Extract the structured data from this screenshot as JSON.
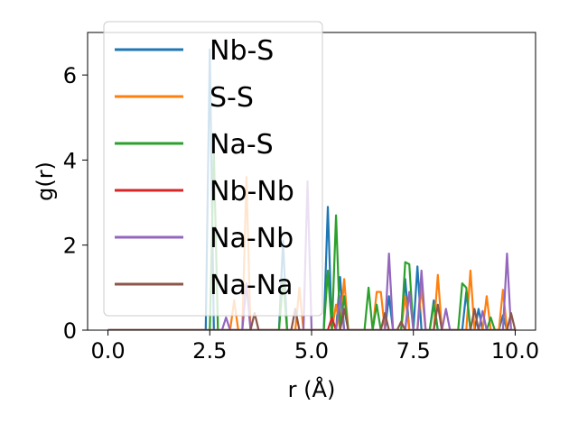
{
  "chart_data": {
    "type": "line",
    "xlabel": "r (Å)",
    "ylabel": "g(r)",
    "xlim": [
      -0.5,
      10.5
    ],
    "ylim": [
      0,
      7
    ],
    "xticks": [
      "0.0",
      "2.5",
      "5.0",
      "7.5",
      "10.0"
    ],
    "yticks": [
      "0",
      "2",
      "4",
      "6"
    ],
    "grid": false,
    "legend_position": "upper-left",
    "series": [
      {
        "name": "Nb-S",
        "color": "#1f77b4",
        "points": [
          [
            0,
            0
          ],
          [
            2.3,
            0
          ],
          [
            2.4,
            0
          ],
          [
            2.5,
            6.6
          ],
          [
            2.6,
            0
          ],
          [
            4.1,
            0
          ],
          [
            4.2,
            0
          ],
          [
            4.3,
            2.1
          ],
          [
            4.4,
            0
          ],
          [
            5.3,
            0
          ],
          [
            5.4,
            2.9
          ],
          [
            5.5,
            0
          ],
          [
            5.6,
            0
          ],
          [
            5.7,
            1.25
          ],
          [
            5.8,
            0
          ],
          [
            6.8,
            0
          ],
          [
            6.9,
            0.8
          ],
          [
            7.0,
            0
          ],
          [
            7.2,
            0
          ],
          [
            7.3,
            1.2
          ],
          [
            7.4,
            0
          ],
          [
            7.5,
            0
          ],
          [
            7.6,
            1.5
          ],
          [
            7.7,
            0
          ],
          [
            7.9,
            0
          ],
          [
            8.0,
            0.7
          ],
          [
            8.1,
            0
          ],
          [
            8.7,
            0
          ],
          [
            8.8,
            0.9
          ],
          [
            8.9,
            0
          ],
          [
            9.0,
            0
          ],
          [
            9.1,
            0.5
          ],
          [
            9.2,
            0
          ],
          [
            9.6,
            0
          ],
          [
            9.7,
            0.35
          ],
          [
            9.8,
            0
          ],
          [
            10.0,
            0
          ]
        ]
      },
      {
        "name": "S-S",
        "color": "#ff7f0e",
        "points": [
          [
            0,
            0
          ],
          [
            3.0,
            0
          ],
          [
            3.1,
            0.7
          ],
          [
            3.2,
            0
          ],
          [
            3.3,
            0
          ],
          [
            3.4,
            3.6
          ],
          [
            3.5,
            0
          ],
          [
            4.6,
            0
          ],
          [
            4.7,
            1.0
          ],
          [
            4.8,
            0
          ],
          [
            5.5,
            0
          ],
          [
            5.6,
            0.6
          ],
          [
            5.7,
            0
          ],
          [
            5.8,
            1.2
          ],
          [
            5.9,
            0
          ],
          [
            6.5,
            0
          ],
          [
            6.6,
            0.9
          ],
          [
            6.7,
            0.9
          ],
          [
            6.8,
            0
          ],
          [
            7.2,
            0
          ],
          [
            7.3,
            0.8
          ],
          [
            7.4,
            0
          ],
          [
            7.6,
            0
          ],
          [
            7.7,
            1.0
          ],
          [
            7.8,
            0
          ],
          [
            8.0,
            0
          ],
          [
            8.1,
            1.3
          ],
          [
            8.2,
            0
          ],
          [
            8.8,
            0
          ],
          [
            8.9,
            1.4
          ],
          [
            9.0,
            0
          ],
          [
            9.2,
            0
          ],
          [
            9.3,
            0.8
          ],
          [
            9.4,
            0
          ],
          [
            9.6,
            0
          ],
          [
            9.7,
            0.95
          ],
          [
            9.8,
            0
          ],
          [
            10.0,
            0
          ]
        ]
      },
      {
        "name": "Na-S",
        "color": "#2ca02c",
        "points": [
          [
            0,
            0
          ],
          [
            2.5,
            0
          ],
          [
            2.6,
            4.2
          ],
          [
            2.7,
            0
          ],
          [
            2.8,
            0
          ],
          [
            4.2,
            0
          ],
          [
            4.3,
            1.2
          ],
          [
            4.4,
            0
          ],
          [
            5.3,
            0
          ],
          [
            5.4,
            1.4
          ],
          [
            5.5,
            0
          ],
          [
            5.6,
            2.7
          ],
          [
            5.7,
            0
          ],
          [
            5.8,
            0.8
          ],
          [
            5.9,
            0
          ],
          [
            6.3,
            0
          ],
          [
            6.4,
            1.0
          ],
          [
            6.5,
            0
          ],
          [
            6.6,
            0.6
          ],
          [
            6.7,
            0
          ],
          [
            7.2,
            0
          ],
          [
            7.3,
            1.6
          ],
          [
            7.4,
            1.55
          ],
          [
            7.5,
            0
          ],
          [
            7.9,
            0
          ],
          [
            8.0,
            0.6
          ],
          [
            8.1,
            0
          ],
          [
            8.6,
            0
          ],
          [
            8.7,
            1.1
          ],
          [
            8.8,
            1.0
          ],
          [
            8.9,
            0
          ],
          [
            9.3,
            0
          ],
          [
            9.4,
            0.3
          ],
          [
            9.5,
            0
          ],
          [
            10.0,
            0
          ]
        ]
      },
      {
        "name": "Nb-Nb",
        "color": "#d62728",
        "points": [
          [
            0,
            0
          ],
          [
            5.4,
            0
          ],
          [
            5.5,
            0.3
          ],
          [
            5.6,
            0
          ],
          [
            10.0,
            0
          ]
        ]
      },
      {
        "name": "Na-Nb",
        "color": "#9467bd",
        "points": [
          [
            0,
            0
          ],
          [
            2.8,
            0
          ],
          [
            2.9,
            0.3
          ],
          [
            3.0,
            0
          ],
          [
            3.3,
            0
          ],
          [
            3.4,
            1.1
          ],
          [
            3.5,
            0
          ],
          [
            4.8,
            0
          ],
          [
            4.9,
            3.5
          ],
          [
            5.0,
            0
          ],
          [
            5.6,
            0
          ],
          [
            5.7,
            0.8
          ],
          [
            5.8,
            0
          ],
          [
            6.8,
            0
          ],
          [
            6.9,
            1.8
          ],
          [
            7.0,
            0
          ],
          [
            7.3,
            0
          ],
          [
            7.4,
            0.9
          ],
          [
            7.5,
            0
          ],
          [
            7.6,
            0
          ],
          [
            7.7,
            1.4
          ],
          [
            7.8,
            0
          ],
          [
            8.2,
            0
          ],
          [
            8.3,
            0.5
          ],
          [
            8.4,
            0
          ],
          [
            9.1,
            0
          ],
          [
            9.2,
            0.45
          ],
          [
            9.3,
            0
          ],
          [
            9.7,
            0
          ],
          [
            9.8,
            1.8
          ],
          [
            9.9,
            0
          ],
          [
            10.0,
            0
          ]
        ]
      },
      {
        "name": "Na-Na",
        "color": "#8c564b",
        "points": [
          [
            0,
            0
          ],
          [
            3.5,
            0
          ],
          [
            3.6,
            0.4
          ],
          [
            3.7,
            0
          ],
          [
            4.5,
            0
          ],
          [
            4.6,
            0.5
          ],
          [
            4.7,
            0
          ],
          [
            5.7,
            0
          ],
          [
            5.8,
            0.5
          ],
          [
            5.9,
            0
          ],
          [
            6.7,
            0
          ],
          [
            6.8,
            0.4
          ],
          [
            6.9,
            0
          ],
          [
            7.1,
            0
          ],
          [
            7.2,
            0.2
          ],
          [
            7.3,
            0
          ],
          [
            8.0,
            0
          ],
          [
            8.1,
            0.6
          ],
          [
            8.2,
            0
          ],
          [
            8.9,
            0
          ],
          [
            9.0,
            0.5
          ],
          [
            9.1,
            0
          ],
          [
            9.8,
            0
          ],
          [
            9.9,
            0.4
          ],
          [
            10.0,
            0
          ]
        ]
      }
    ]
  }
}
